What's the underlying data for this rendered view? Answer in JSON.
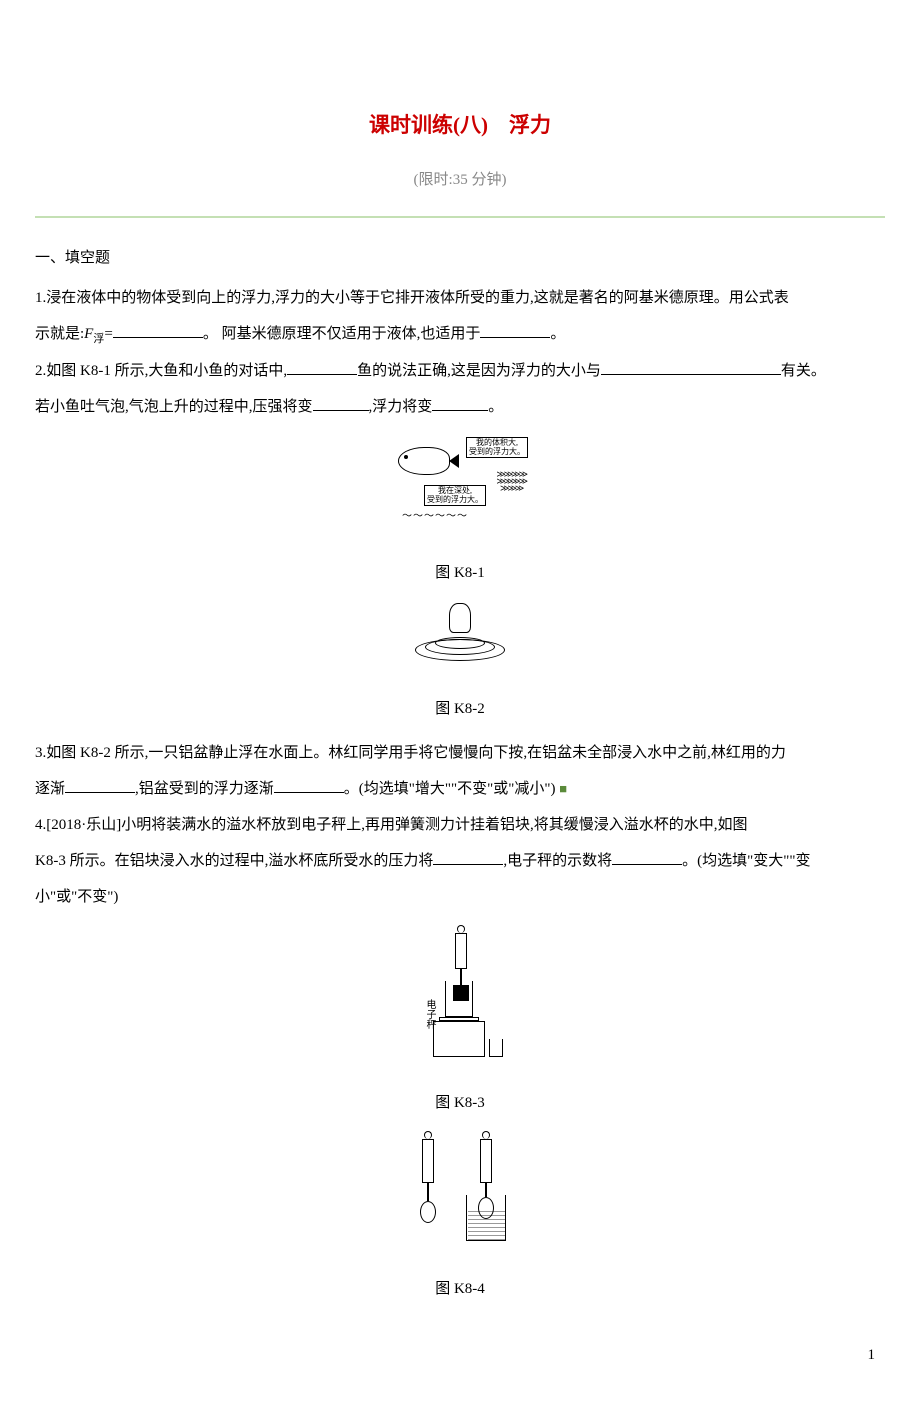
{
  "title": "课时训练(八)　浮力",
  "subtitle": "(限时:35 分钟)",
  "section_heading": "一、填空题",
  "q1_a": "1.浸在液体中的物体受到向上的浮力,浮力的大小等于它排开液体所受的重力,这就是著名的阿基米德原理。用公式表",
  "q1_b_pre": "示就是:",
  "q1_var": "F",
  "q1_sub": "浮",
  "q1_eq": "=",
  "q1_c": "。 阿基米德原理不仅适用于液体,也适用于",
  "q1_d": "。",
  "q2_a": "2.如图 K8-1 所示,大鱼和小鱼的对话中,",
  "q2_b": "鱼的说法正确,这是因为浮力的大小与",
  "q2_c": "有关。",
  "q2_d": "若小鱼吐气泡,气泡上升的过程中,压强将变",
  "q2_e": ",浮力将变",
  "q2_f": "。",
  "fig1_bubble1_l1": "我的体积大,",
  "fig1_bubble1_l2": "受到的浮力大。",
  "fig1_bubble2_l1": "我在深处,",
  "fig1_bubble2_l2": "受到的浮力大。",
  "fig1_caption": "图 K8-1",
  "fig2_caption": "图 K8-2",
  "q3_a": "3.如图 K8-2 所示,一只铝盆静止浮在水面上。林红同学用手将它慢慢向下按,在铝盆未全部浸入水中之前,林红用的力",
  "q3_b": "逐渐",
  "q3_c": ",铝盆受到的浮力逐渐",
  "q3_d": "。(均选填\"增大\"\"不变\"或\"减小\") ",
  "q4_a": "4.[2018·乐山]小明将装满水的溢水杯放到电子秤上,再用弹簧测力计挂着铝块,将其缓慢浸入溢水杯的水中,如图",
  "q4_b": "K8-3 所示。在铝块浸入水的过程中,溢水杯底所受水的压力将",
  "q4_c": ",电子秤的示数将",
  "q4_d": "。(均选填\"变大\"\"变",
  "q4_e": "小\"或\"不变\")",
  "fig3_label": "电子秤",
  "fig3_caption": "图 K8-3",
  "fig4_caption": "图 K8-4",
  "page_number": "1",
  "colors": {
    "title_color": "#cc0000",
    "subtitle_color": "#888888",
    "divider_color": "#c4e0b4",
    "text_color": "#000000",
    "background": "#ffffff",
    "green_marker": "#5a8a3a"
  }
}
